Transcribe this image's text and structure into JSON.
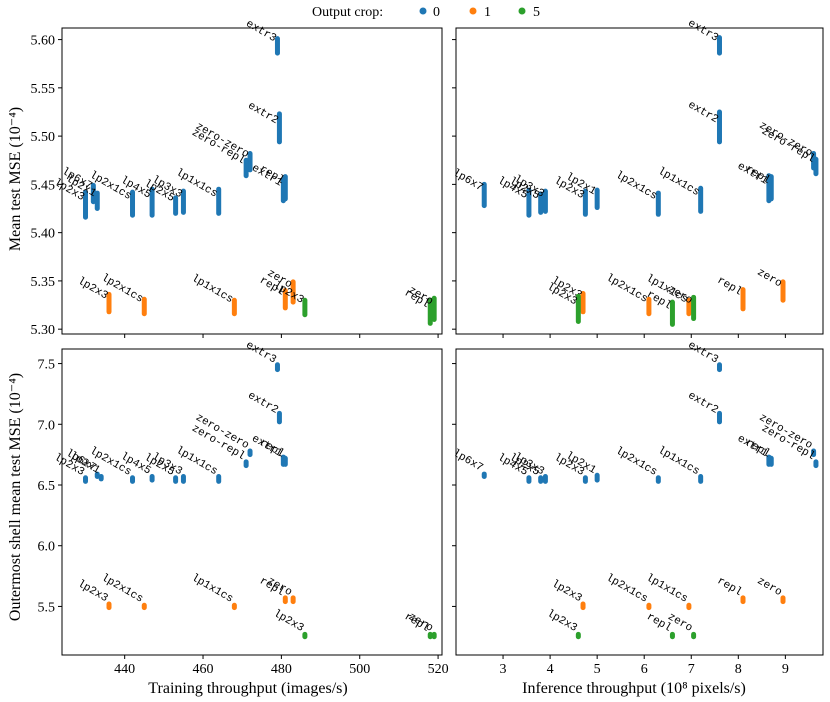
{
  "legend": {
    "title": "Output crop:",
    "entries": [
      {
        "label": "0",
        "color": "#1f77b4"
      },
      {
        "label": "1",
        "color": "#ff7f0e"
      },
      {
        "label": "5",
        "color": "#2ca02c"
      }
    ]
  },
  "chart_data": [
    {
      "type": "scatter",
      "panel": "top-left",
      "xlabel": "",
      "ylabel": "Mean test MSE (10⁻⁴)",
      "xlim": [
        424,
        521
      ],
      "ylim": [
        5.295,
        5.612
      ],
      "xticks": [
        440,
        460,
        480,
        500,
        520
      ],
      "yticks": [
        5.3,
        5.35,
        5.4,
        5.45,
        5.5,
        5.55,
        5.6
      ],
      "yticklabels": [
        "5.30",
        "5.35",
        "5.40",
        "5.45",
        "5.50",
        "5.55",
        "5.60"
      ],
      "points": [
        {
          "label": "lp2x3",
          "x": 430,
          "lo": 5.416,
          "hi": 5.442,
          "crop": 0
        },
        {
          "label": "lp6x7",
          "x": 432,
          "lo": 5.432,
          "hi": 5.449,
          "crop": 0
        },
        {
          "label": "lp2x1",
          "x": 433,
          "lo": 5.425,
          "hi": 5.441,
          "crop": 0
        },
        {
          "label": "lp2x1cs",
          "x": 442,
          "lo": 5.418,
          "hi": 5.442,
          "crop": 0
        },
        {
          "label": "lp4x5",
          "x": 447,
          "lo": 5.418,
          "hi": 5.445,
          "crop": 0
        },
        {
          "label": "lp2x5",
          "x": 453,
          "lo": 5.42,
          "hi": 5.436,
          "crop": 0
        },
        {
          "label": "lp3x3",
          "x": 455,
          "lo": 5.421,
          "hi": 5.443,
          "crop": 0
        },
        {
          "label": "lp1x1cs",
          "x": 464,
          "lo": 5.42,
          "hi": 5.445,
          "crop": 0
        },
        {
          "label": "zero-zero",
          "x": 472,
          "lo": 5.465,
          "hi": 5.482,
          "crop": 0
        },
        {
          "label": "zero-repl",
          "x": 471,
          "lo": 5.459,
          "hi": 5.475,
          "crop": 0
        },
        {
          "label": "extr1",
          "x": 480.5,
          "lo": 5.433,
          "hi": 5.455,
          "crop": 0
        },
        {
          "label": "repl",
          "x": 481,
          "lo": 5.435,
          "hi": 5.458,
          "crop": 0
        },
        {
          "label": "extr2",
          "x": 479.5,
          "lo": 5.494,
          "hi": 5.523,
          "crop": 0
        },
        {
          "label": "extr3",
          "x": 479,
          "lo": 5.586,
          "hi": 5.601,
          "crop": 0
        },
        {
          "label": "lp2x3",
          "x": 436,
          "lo": 5.318,
          "hi": 5.336,
          "crop": 1
        },
        {
          "label": "lp2x1cs",
          "x": 445,
          "lo": 5.316,
          "hi": 5.331,
          "crop": 1
        },
        {
          "label": "lp1x1cs",
          "x": 468,
          "lo": 5.316,
          "hi": 5.33,
          "crop": 1
        },
        {
          "label": "repl",
          "x": 481,
          "lo": 5.322,
          "hi": 5.34,
          "crop": 1
        },
        {
          "label": "zero",
          "x": 483,
          "lo": 5.328,
          "hi": 5.349,
          "crop": 1
        },
        {
          "label": "lp2x3",
          "x": 486,
          "lo": 5.315,
          "hi": 5.33,
          "crop": 5
        },
        {
          "label": "repl",
          "x": 518,
          "lo": 5.306,
          "hi": 5.33,
          "crop": 5
        },
        {
          "label": "zero",
          "x": 519,
          "lo": 5.31,
          "hi": 5.332,
          "crop": 5
        }
      ]
    },
    {
      "type": "scatter",
      "panel": "top-right",
      "xlabel": "",
      "ylabel": "",
      "xlim": [
        2.0,
        9.8
      ],
      "ylim": [
        5.295,
        5.612
      ],
      "xticks": [
        3,
        4,
        5,
        6,
        7,
        8,
        9
      ],
      "yticks": [
        5.3,
        5.35,
        5.4,
        5.45,
        5.5,
        5.55,
        5.6
      ],
      "points": [
        {
          "label": "lp6x7",
          "x": 2.6,
          "lo": 5.428,
          "hi": 5.45,
          "crop": 0
        },
        {
          "label": "lp4x5",
          "x": 3.55,
          "lo": 5.418,
          "hi": 5.444,
          "crop": 0
        },
        {
          "label": "lp2x5",
          "x": 3.8,
          "lo": 5.421,
          "hi": 5.44,
          "crop": 0
        },
        {
          "label": "lp3x3",
          "x": 3.9,
          "lo": 5.422,
          "hi": 5.443,
          "crop": 0
        },
        {
          "label": "lp2x3",
          "x": 4.75,
          "lo": 5.419,
          "hi": 5.443,
          "crop": 0
        },
        {
          "label": "lp2x1",
          "x": 5.0,
          "lo": 5.426,
          "hi": 5.444,
          "crop": 0
        },
        {
          "label": "lp2x1cs",
          "x": 6.3,
          "lo": 5.419,
          "hi": 5.441,
          "crop": 0
        },
        {
          "label": "lp1x1cs",
          "x": 7.2,
          "lo": 5.422,
          "hi": 5.446,
          "crop": 0
        },
        {
          "label": "extr3",
          "x": 7.6,
          "lo": 5.586,
          "hi": 5.602,
          "crop": 0
        },
        {
          "label": "extr2",
          "x": 7.6,
          "lo": 5.494,
          "hi": 5.525,
          "crop": 0
        },
        {
          "label": "extr1",
          "x": 8.65,
          "lo": 5.433,
          "hi": 5.459,
          "crop": 0
        },
        {
          "label": "repl",
          "x": 8.7,
          "lo": 5.435,
          "hi": 5.458,
          "crop": 0
        },
        {
          "label": "zero-zero",
          "x": 9.6,
          "lo": 5.467,
          "hi": 5.482,
          "crop": 0
        },
        {
          "label": "zero-repl",
          "x": 9.65,
          "lo": 5.461,
          "hi": 5.476,
          "crop": 0
        },
        {
          "label": "lp2x3",
          "x": 4.7,
          "lo": 5.318,
          "hi": 5.337,
          "crop": 1
        },
        {
          "label": "lp2x1cs",
          "x": 6.1,
          "lo": 5.316,
          "hi": 5.331,
          "crop": 1
        },
        {
          "label": "lp1x1cs",
          "x": 6.95,
          "lo": 5.316,
          "hi": 5.33,
          "crop": 1
        },
        {
          "label": "repl",
          "x": 8.1,
          "lo": 5.321,
          "hi": 5.341,
          "crop": 1
        },
        {
          "label": "zero",
          "x": 8.95,
          "lo": 5.33,
          "hi": 5.349,
          "crop": 1
        },
        {
          "label": "lp2x3",
          "x": 4.6,
          "lo": 5.308,
          "hi": 5.334,
          "crop": 5
        },
        {
          "label": "repl",
          "x": 6.6,
          "lo": 5.305,
          "hi": 5.328,
          "crop": 5
        },
        {
          "label": "zero",
          "x": 7.05,
          "lo": 5.311,
          "hi": 5.333,
          "crop": 5
        }
      ]
    },
    {
      "type": "scatter",
      "panel": "bottom-left",
      "xlabel": "Training throughput (images/s)",
      "ylabel": "Outermost shell mean test MSE (10⁻⁴)",
      "xlim": [
        424,
        521
      ],
      "ylim": [
        5.1,
        7.62
      ],
      "xticks": [
        440,
        460,
        480,
        500,
        520
      ],
      "xticklabels": [
        "440",
        "460",
        "480",
        "500",
        "520"
      ],
      "yticks": [
        5.5,
        6.0,
        6.5,
        7.0,
        7.5
      ],
      "yticklabels": [
        "5.5",
        "6.0",
        "6.5",
        "7.0",
        "7.5"
      ],
      "points": [
        {
          "label": "lp2x3",
          "x": 430,
          "lo": 6.53,
          "hi": 6.56,
          "crop": 0
        },
        {
          "label": "lp6x7",
          "x": 433,
          "lo": 6.57,
          "hi": 6.59,
          "crop": 0
        },
        {
          "label": "lp2x1",
          "x": 434,
          "lo": 6.55,
          "hi": 6.57,
          "crop": 0
        },
        {
          "label": "lp2x1cs",
          "x": 442,
          "lo": 6.53,
          "hi": 6.56,
          "crop": 0
        },
        {
          "label": "lp4x5",
          "x": 447,
          "lo": 6.54,
          "hi": 6.57,
          "crop": 0
        },
        {
          "label": "lp2x5",
          "x": 453,
          "lo": 6.53,
          "hi": 6.56,
          "crop": 0
        },
        {
          "label": "lp3x3",
          "x": 455,
          "lo": 6.53,
          "hi": 6.57,
          "crop": 0
        },
        {
          "label": "lp1x1cs",
          "x": 464,
          "lo": 6.53,
          "hi": 6.57,
          "crop": 0
        },
        {
          "label": "zero-zero",
          "x": 472,
          "lo": 6.75,
          "hi": 6.78,
          "crop": 0
        },
        {
          "label": "zero-repl",
          "x": 471,
          "lo": 6.66,
          "hi": 6.69,
          "crop": 0
        },
        {
          "label": "extr1",
          "x": 480.5,
          "lo": 6.67,
          "hi": 6.73,
          "crop": 0
        },
        {
          "label": "repl",
          "x": 481,
          "lo": 6.67,
          "hi": 6.72,
          "crop": 0
        },
        {
          "label": "extr2",
          "x": 479.5,
          "lo": 7.02,
          "hi": 7.09,
          "crop": 0
        },
        {
          "label": "extr3",
          "x": 479,
          "lo": 7.45,
          "hi": 7.49,
          "crop": 0
        },
        {
          "label": "lp2x3",
          "x": 436,
          "lo": 5.49,
          "hi": 5.52,
          "crop": 1
        },
        {
          "label": "lp2x1cs",
          "x": 445,
          "lo": 5.49,
          "hi": 5.51,
          "crop": 1
        },
        {
          "label": "lp1x1cs",
          "x": 468,
          "lo": 5.49,
          "hi": 5.51,
          "crop": 1
        },
        {
          "label": "repl",
          "x": 481,
          "lo": 5.54,
          "hi": 5.57,
          "crop": 1
        },
        {
          "label": "zero",
          "x": 483,
          "lo": 5.54,
          "hi": 5.57,
          "crop": 1
        },
        {
          "label": "lp2x3",
          "x": 486,
          "lo": 5.25,
          "hi": 5.27,
          "crop": 5
        },
        {
          "label": "repl",
          "x": 518,
          "lo": 5.25,
          "hi": 5.27,
          "crop": 5
        },
        {
          "label": "zero",
          "x": 519,
          "lo": 5.25,
          "hi": 5.27,
          "crop": 5
        }
      ]
    },
    {
      "type": "scatter",
      "panel": "bottom-right",
      "xlabel": "Inference throughput (10⁸ pixels/s)",
      "ylabel": "",
      "xlim": [
        2.0,
        9.8
      ],
      "ylim": [
        5.1,
        7.62
      ],
      "xticks": [
        3,
        4,
        5,
        6,
        7,
        8,
        9
      ],
      "xticklabels": [
        "3",
        "4",
        "5",
        "6",
        "7",
        "8",
        "9"
      ],
      "yticks": [
        5.5,
        6.0,
        6.5,
        7.0,
        7.5
      ],
      "points": [
        {
          "label": "lp6x7",
          "x": 2.6,
          "lo": 6.57,
          "hi": 6.59,
          "crop": 0
        },
        {
          "label": "lp4x5",
          "x": 3.55,
          "lo": 6.53,
          "hi": 6.56,
          "crop": 0
        },
        {
          "label": "lp2x5",
          "x": 3.8,
          "lo": 6.53,
          "hi": 6.56,
          "crop": 0
        },
        {
          "label": "lp3x3",
          "x": 3.9,
          "lo": 6.53,
          "hi": 6.57,
          "crop": 0
        },
        {
          "label": "lp2x3",
          "x": 4.75,
          "lo": 6.53,
          "hi": 6.56,
          "crop": 0
        },
        {
          "label": "lp2x1",
          "x": 5.0,
          "lo": 6.54,
          "hi": 6.58,
          "crop": 0
        },
        {
          "label": "lp2x1cs",
          "x": 6.3,
          "lo": 6.53,
          "hi": 6.56,
          "crop": 0
        },
        {
          "label": "lp1x1cs",
          "x": 7.2,
          "lo": 6.53,
          "hi": 6.57,
          "crop": 0
        },
        {
          "label": "extr3",
          "x": 7.6,
          "lo": 7.45,
          "hi": 7.49,
          "crop": 0
        },
        {
          "label": "extr2",
          "x": 7.6,
          "lo": 7.02,
          "hi": 7.09,
          "crop": 0
        },
        {
          "label": "extr1",
          "x": 8.65,
          "lo": 6.67,
          "hi": 6.73,
          "crop": 0
        },
        {
          "label": "repl",
          "x": 8.7,
          "lo": 6.67,
          "hi": 6.72,
          "crop": 0
        },
        {
          "label": "zero-zero",
          "x": 9.6,
          "lo": 6.75,
          "hi": 6.78,
          "crop": 0
        },
        {
          "label": "zero-repl",
          "x": 9.65,
          "lo": 6.66,
          "hi": 6.69,
          "crop": 0
        },
        {
          "label": "lp2x3",
          "x": 4.7,
          "lo": 5.49,
          "hi": 5.52,
          "crop": 1
        },
        {
          "label": "lp2x1cs",
          "x": 6.1,
          "lo": 5.49,
          "hi": 5.51,
          "crop": 1
        },
        {
          "label": "lp1x1cs",
          "x": 6.95,
          "lo": 5.49,
          "hi": 5.51,
          "crop": 1
        },
        {
          "label": "repl",
          "x": 8.1,
          "lo": 5.54,
          "hi": 5.57,
          "crop": 1
        },
        {
          "label": "zero",
          "x": 8.95,
          "lo": 5.54,
          "hi": 5.57,
          "crop": 1
        },
        {
          "label": "lp2x3",
          "x": 4.6,
          "lo": 5.25,
          "hi": 5.27,
          "crop": 5
        },
        {
          "label": "repl",
          "x": 6.6,
          "lo": 5.25,
          "hi": 5.27,
          "crop": 5
        },
        {
          "label": "zero",
          "x": 7.05,
          "lo": 5.25,
          "hi": 5.27,
          "crop": 5
        }
      ]
    }
  ]
}
